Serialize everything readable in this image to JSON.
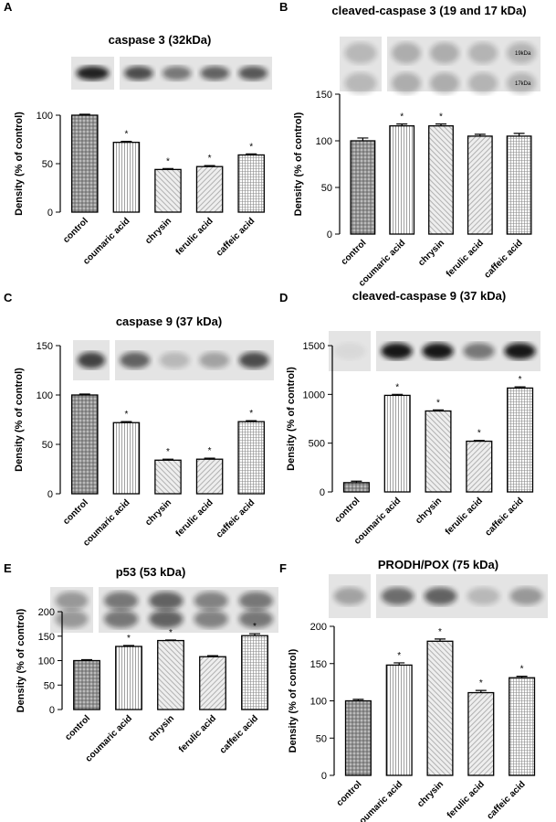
{
  "chart_data": [
    {
      "type": "bar",
      "label": "A",
      "title": "caspase 3 (32kDa)",
      "y_label": "Density (% of control)",
      "categories": [
        "control",
        "coumaric acid",
        "chrysin",
        "ferulic acid",
        "caffeic acid"
      ],
      "values": [
        100,
        72,
        44,
        47,
        59
      ],
      "errors": [
        1,
        1,
        1,
        1,
        1
      ],
      "significance": [
        null,
        "*",
        "*",
        "*",
        "*"
      ],
      "color": "#e0e0e0",
      "ylim": [
        0,
        100
      ],
      "yticks": [
        0,
        50,
        100
      ]
    },
    {
      "type": "bar",
      "label": "B",
      "title": "cleaved-caspase 3 (19 and 17 kDa)",
      "y_label": "Density (% of control)",
      "band_labels": [
        "19kDa",
        "17kDa"
      ],
      "categories": [
        "control",
        "coumaric acid",
        "chrysin",
        "ferulic acid",
        "caffeic acid"
      ],
      "values": [
        100,
        116,
        116,
        105,
        105
      ],
      "errors": [
        3,
        2,
        2,
        2,
        3
      ],
      "significance": [
        null,
        "*",
        "*",
        null,
        null
      ],
      "color": "#e0e0e0",
      "ylim": [
        0,
        150
      ],
      "yticks": [
        0,
        50,
        100,
        150
      ]
    },
    {
      "type": "bar",
      "label": "C",
      "title": "caspase 9 (37 kDa)",
      "y_label": "Density (% of control)",
      "categories": [
        "control",
        "coumaric acid",
        "chrysin",
        "ferulic acid",
        "caffeic acid"
      ],
      "values": [
        100,
        72,
        34,
        35,
        73
      ],
      "errors": [
        1,
        1,
        1,
        1,
        1
      ],
      "significance": [
        null,
        "*",
        "*",
        "*",
        "*"
      ],
      "color": "#e0e0e0",
      "ylim": [
        0,
        150
      ],
      "yticks": [
        0,
        50,
        100,
        150
      ]
    },
    {
      "type": "bar",
      "label": "D",
      "title": "cleaved-caspase 9 (37 kDa)",
      "y_label": "Density (% of control)",
      "categories": [
        "control",
        "coumaric acid",
        "chrysin",
        "ferulic acid",
        "caffeic acid"
      ],
      "values": [
        95,
        990,
        830,
        520,
        1065
      ],
      "errors": [
        15,
        10,
        10,
        8,
        12
      ],
      "significance": [
        null,
        "*",
        "*",
        "*",
        "*"
      ],
      "color": "#e0e0e0",
      "ylim": [
        0,
        1500
      ],
      "yticks": [
        0,
        500,
        1000,
        1500
      ]
    },
    {
      "type": "bar",
      "label": "E",
      "title": "p53 (53 kDa)",
      "y_label": "Density (% of control)",
      "categories": [
        "control",
        "coumaric acid",
        "chrysin",
        "ferulic acid",
        "caffeic acid"
      ],
      "values": [
        100,
        129,
        141,
        108,
        151
      ],
      "errors": [
        2,
        2,
        1,
        2,
        4
      ],
      "significance": [
        null,
        "*",
        "*",
        null,
        "*"
      ],
      "color": "#e0e0e0",
      "ylim": [
        0,
        200
      ],
      "yticks": [
        0,
        50,
        100,
        150,
        200
      ]
    },
    {
      "type": "bar",
      "label": "F",
      "title": "PRODH/POX (75 kDa)",
      "y_label": "Density (% of control)",
      "categories": [
        "control",
        "coumaric acid",
        "chrysin",
        "ferulic acid",
        "caffeic acid"
      ],
      "values": [
        100,
        148,
        180,
        111,
        131
      ],
      "errors": [
        2,
        3,
        3,
        3,
        2
      ],
      "significance": [
        null,
        "*",
        "*",
        "*",
        "*"
      ],
      "color": "#e0e0e0",
      "ylim": [
        0,
        200
      ],
      "yticks": [
        0,
        50,
        100,
        150,
        200
      ]
    }
  ]
}
